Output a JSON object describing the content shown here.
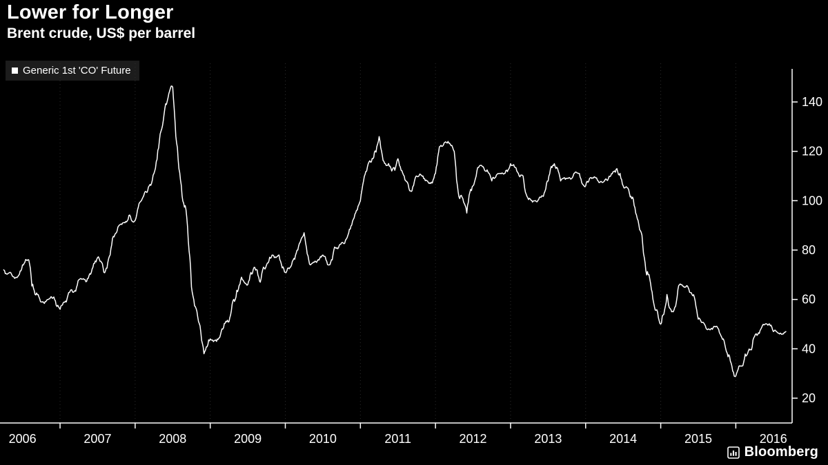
{
  "header": {
    "title": "Lower for Longer",
    "subtitle": "Brent crude, US$ per barrel"
  },
  "legend": {
    "label": "Generic 1st 'CO' Future"
  },
  "branding": {
    "logo": "Bloomberg"
  },
  "colors": {
    "background": "#000000",
    "line": "#ffffff",
    "text": "#ffffff",
    "legend_background": "#1c1c1c",
    "grid": "#2e2e2e",
    "axis": "#ffffff"
  },
  "chart_data": {
    "type": "line",
    "title": "Lower for Longer",
    "subtitle": "Brent crude, US$ per barrel",
    "legend_position": "top-left",
    "grid": "vertical-dotted",
    "y_axis_side": "right",
    "y_ticks": [
      20,
      40,
      60,
      80,
      100,
      120,
      140
    ],
    "x_tick_years": [
      2006,
      2007,
      2008,
      2009,
      2010,
      2011,
      2012,
      2013,
      2014,
      2015,
      2016
    ],
    "x_range": [
      2006.2,
      2016.75
    ],
    "ylim": [
      15,
      150
    ],
    "series": [
      {
        "name": "Generic 1st 'CO' Future",
        "unit": "US$ per barrel",
        "start": {
          "year": 2006,
          "month": 4
        },
        "frequency": "monthly",
        "monthly_values": [
          72,
          71,
          69,
          74,
          76,
          62,
          59,
          60,
          61,
          56,
          59,
          63,
          68,
          68,
          71,
          77,
          71,
          78,
          87,
          91,
          94,
          92,
          100,
          104,
          111,
          127,
          139,
          146,
          113,
          98,
          65,
          53,
          38,
          44,
          43,
          48,
          51,
          60,
          69,
          66,
          73,
          67,
          74,
          78,
          78,
          71,
          74,
          80,
          87,
          74,
          75,
          78,
          74,
          81,
          83,
          86,
          93,
          100,
          112,
          117,
          126,
          115,
          112,
          117,
          110,
          104,
          110,
          110,
          107,
          111,
          122,
          124,
          120,
          102,
          95,
          106,
          114,
          112,
          108,
          111,
          111,
          115,
          112,
          110,
          101,
          100,
          102,
          108,
          115,
          108,
          109,
          110,
          111,
          106,
          109,
          108,
          108,
          110,
          113,
          106,
          103,
          95,
          86,
          70,
          57,
          50,
          62,
          55,
          66,
          65,
          62,
          52,
          50,
          48,
          49,
          44,
          37,
          29,
          33,
          39,
          45,
          48,
          50,
          47,
          46,
          47
        ]
      }
    ]
  }
}
